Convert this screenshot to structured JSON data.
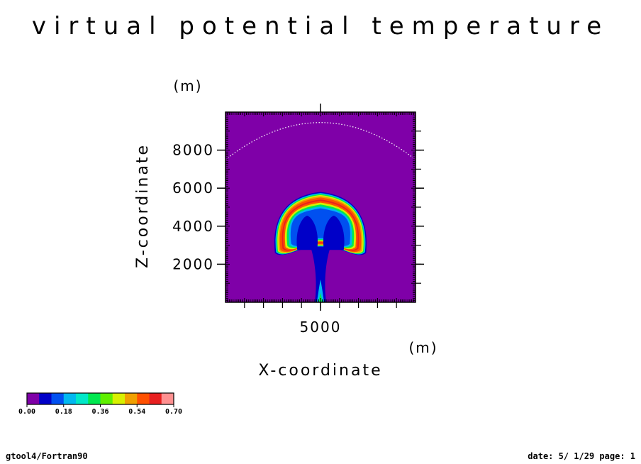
{
  "chart_data": {
    "type": "heatmap",
    "title": "virtual potential temperature",
    "xlabel": "X-coordinate",
    "ylabel": "Z-coordinate",
    "x_unit": "(m)",
    "y_unit": "(m)",
    "xlim": [
      0,
      10000
    ],
    "ylim": [
      0,
      10000
    ],
    "x_ticks": [
      5000
    ],
    "x_tick_labels": [
      "5000"
    ],
    "y_ticks": [
      2000,
      4000,
      6000,
      8000
    ],
    "y_tick_labels": [
      "2000",
      "4000",
      "6000",
      "8000"
    ],
    "background_color": "#7f00a8",
    "levels_colors": [
      "#7f00a8",
      "#0000c8",
      "#0050f0",
      "#00b8f0",
      "#00e8c8",
      "#00e850",
      "#60f000",
      "#d8f000",
      "#f0a000",
      "#ff5000",
      "#e82020",
      "#ff9090"
    ],
    "colorbar": {
      "range": [
        0.0,
        0.7
      ],
      "tick_labels": [
        "0.00",
        "0.18",
        "0.36",
        "0.54",
        "0.70"
      ]
    },
    "features": {
      "plume_center_x": 5000,
      "cap_top_z": 5800,
      "cap_bottom_z": 2600,
      "cap_half_width_x": 2400,
      "dotted_arc_peak_z": 9500,
      "dotted_arc_edge_z": 7500
    }
  },
  "footer": {
    "left": "gtool4/Fortran90",
    "right": "date: 5/ 1/29 page: 1"
  }
}
